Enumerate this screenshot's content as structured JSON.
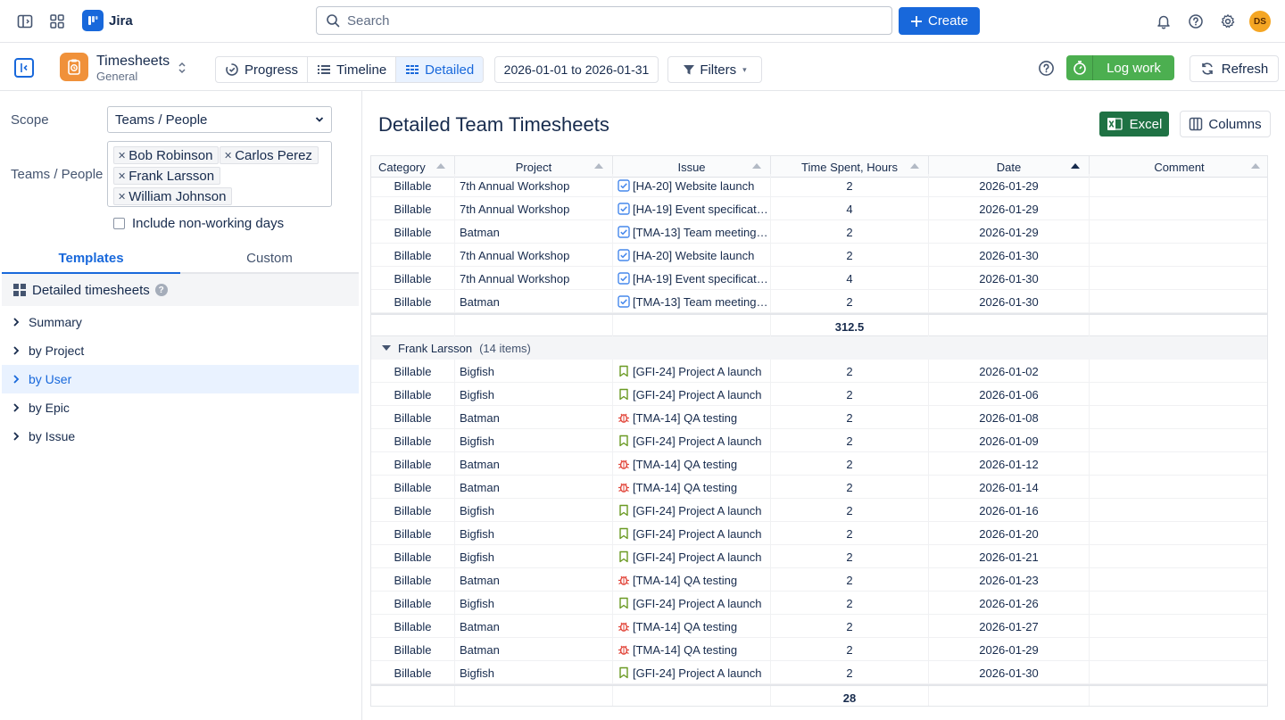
{
  "topnav": {
    "brand": "Jira",
    "search_placeholder": "Search",
    "create_label": "Create",
    "avatar_initials": "DS"
  },
  "subbar": {
    "app_title": "Timesheets",
    "app_subtitle": "General",
    "tabs": [
      "Progress",
      "Timeline",
      "Detailed"
    ],
    "active_tab": "Detailed",
    "date_range": "2026-01-01 to 2026-01-31",
    "filters_label": "Filters",
    "log_work_label": "Log work",
    "refresh_label": "Refresh"
  },
  "sidebar": {
    "scope_label": "Scope",
    "scope_value": "Teams / People",
    "people_label": "Teams / People",
    "people": [
      "Bob Robinson",
      "Carlos Perez",
      "Frank Larsson",
      "William Johnson"
    ],
    "include_nonworking_label": "Include non-working days",
    "tabs": [
      "Templates",
      "Custom"
    ],
    "active_tab": "Templates",
    "template_group": "Detailed timesheets",
    "tree": [
      "Summary",
      "by Project",
      "by User",
      "by Epic",
      "by Issue"
    ],
    "active_tree_item": "by User"
  },
  "main": {
    "title": "Detailed Team Timesheets",
    "excel_label": "Excel",
    "columns_label": "Columns",
    "headers": [
      "Category",
      "Project",
      "Issue",
      "Time Spent, Hours",
      "Date",
      "Comment"
    ],
    "sorted_column": "Date",
    "top_rows": [
      {
        "category": "Billable",
        "project": "7th Annual Workshop",
        "issue_type": "task",
        "issue": "[HA-20] Website launch",
        "hours": "2",
        "date": "2026-01-29",
        "comment": ""
      },
      {
        "category": "Billable",
        "project": "7th Annual Workshop",
        "issue_type": "task",
        "issue": "[HA-19] Event specificati...",
        "hours": "4",
        "date": "2026-01-29",
        "comment": ""
      },
      {
        "category": "Billable",
        "project": "Batman",
        "issue_type": "task",
        "issue": "[TMA-13] Team meeting ...",
        "hours": "2",
        "date": "2026-01-29",
        "comment": ""
      },
      {
        "category": "Billable",
        "project": "7th Annual Workshop",
        "issue_type": "task",
        "issue": "[HA-20] Website launch",
        "hours": "2",
        "date": "2026-01-30",
        "comment": ""
      },
      {
        "category": "Billable",
        "project": "7th Annual Workshop",
        "issue_type": "task",
        "issue": "[HA-19] Event specificati...",
        "hours": "4",
        "date": "2026-01-30",
        "comment": ""
      },
      {
        "category": "Billable",
        "project": "Batman",
        "issue_type": "task",
        "issue": "[TMA-13] Team meeting ...",
        "hours": "2",
        "date": "2026-01-30",
        "comment": ""
      }
    ],
    "top_total": "312.5",
    "group": {
      "name": "Frank Larsson",
      "count_label": "(14 items)",
      "rows": [
        {
          "category": "Billable",
          "project": "Bigfish",
          "issue_type": "story",
          "issue": "[GFI-24] Project A launch",
          "hours": "2",
          "date": "2026-01-02",
          "comment": ""
        },
        {
          "category": "Billable",
          "project": "Bigfish",
          "issue_type": "story",
          "issue": "[GFI-24] Project A launch",
          "hours": "2",
          "date": "2026-01-06",
          "comment": ""
        },
        {
          "category": "Billable",
          "project": "Batman",
          "issue_type": "bug",
          "issue": "[TMA-14] QA testing",
          "hours": "2",
          "date": "2026-01-08",
          "comment": ""
        },
        {
          "category": "Billable",
          "project": "Bigfish",
          "issue_type": "story",
          "issue": "[GFI-24] Project A launch",
          "hours": "2",
          "date": "2026-01-09",
          "comment": ""
        },
        {
          "category": "Billable",
          "project": "Batman",
          "issue_type": "bug",
          "issue": "[TMA-14] QA testing",
          "hours": "2",
          "date": "2026-01-12",
          "comment": ""
        },
        {
          "category": "Billable",
          "project": "Batman",
          "issue_type": "bug",
          "issue": "[TMA-14] QA testing",
          "hours": "2",
          "date": "2026-01-14",
          "comment": ""
        },
        {
          "category": "Billable",
          "project": "Bigfish",
          "issue_type": "story",
          "issue": "[GFI-24] Project A launch",
          "hours": "2",
          "date": "2026-01-16",
          "comment": ""
        },
        {
          "category": "Billable",
          "project": "Bigfish",
          "issue_type": "story",
          "issue": "[GFI-24] Project A launch",
          "hours": "2",
          "date": "2026-01-20",
          "comment": ""
        },
        {
          "category": "Billable",
          "project": "Bigfish",
          "issue_type": "story",
          "issue": "[GFI-24] Project A launch",
          "hours": "2",
          "date": "2026-01-21",
          "comment": ""
        },
        {
          "category": "Billable",
          "project": "Batman",
          "issue_type": "bug",
          "issue": "[TMA-14] QA testing",
          "hours": "2",
          "date": "2026-01-23",
          "comment": ""
        },
        {
          "category": "Billable",
          "project": "Bigfish",
          "issue_type": "story",
          "issue": "[GFI-24] Project A launch",
          "hours": "2",
          "date": "2026-01-26",
          "comment": ""
        },
        {
          "category": "Billable",
          "project": "Batman",
          "issue_type": "bug",
          "issue": "[TMA-14] QA testing",
          "hours": "2",
          "date": "2026-01-27",
          "comment": ""
        },
        {
          "category": "Billable",
          "project": "Batman",
          "issue_type": "bug",
          "issue": "[TMA-14] QA testing",
          "hours": "2",
          "date": "2026-01-29",
          "comment": ""
        },
        {
          "category": "Billable",
          "project": "Bigfish",
          "issue_type": "story",
          "issue": "[GFI-24] Project A launch",
          "hours": "2",
          "date": "2026-01-30",
          "comment": ""
        }
      ],
      "total": "28"
    }
  },
  "colors": {
    "primary": "#1868db",
    "log_work": "#4caf50",
    "excel": "#1f7244",
    "app_icon": "#f0913a",
    "avatar": "#f5a623",
    "task_icon": "#4688ec",
    "story_icon": "#6a9a23",
    "bug_icon": "#e2483d"
  }
}
